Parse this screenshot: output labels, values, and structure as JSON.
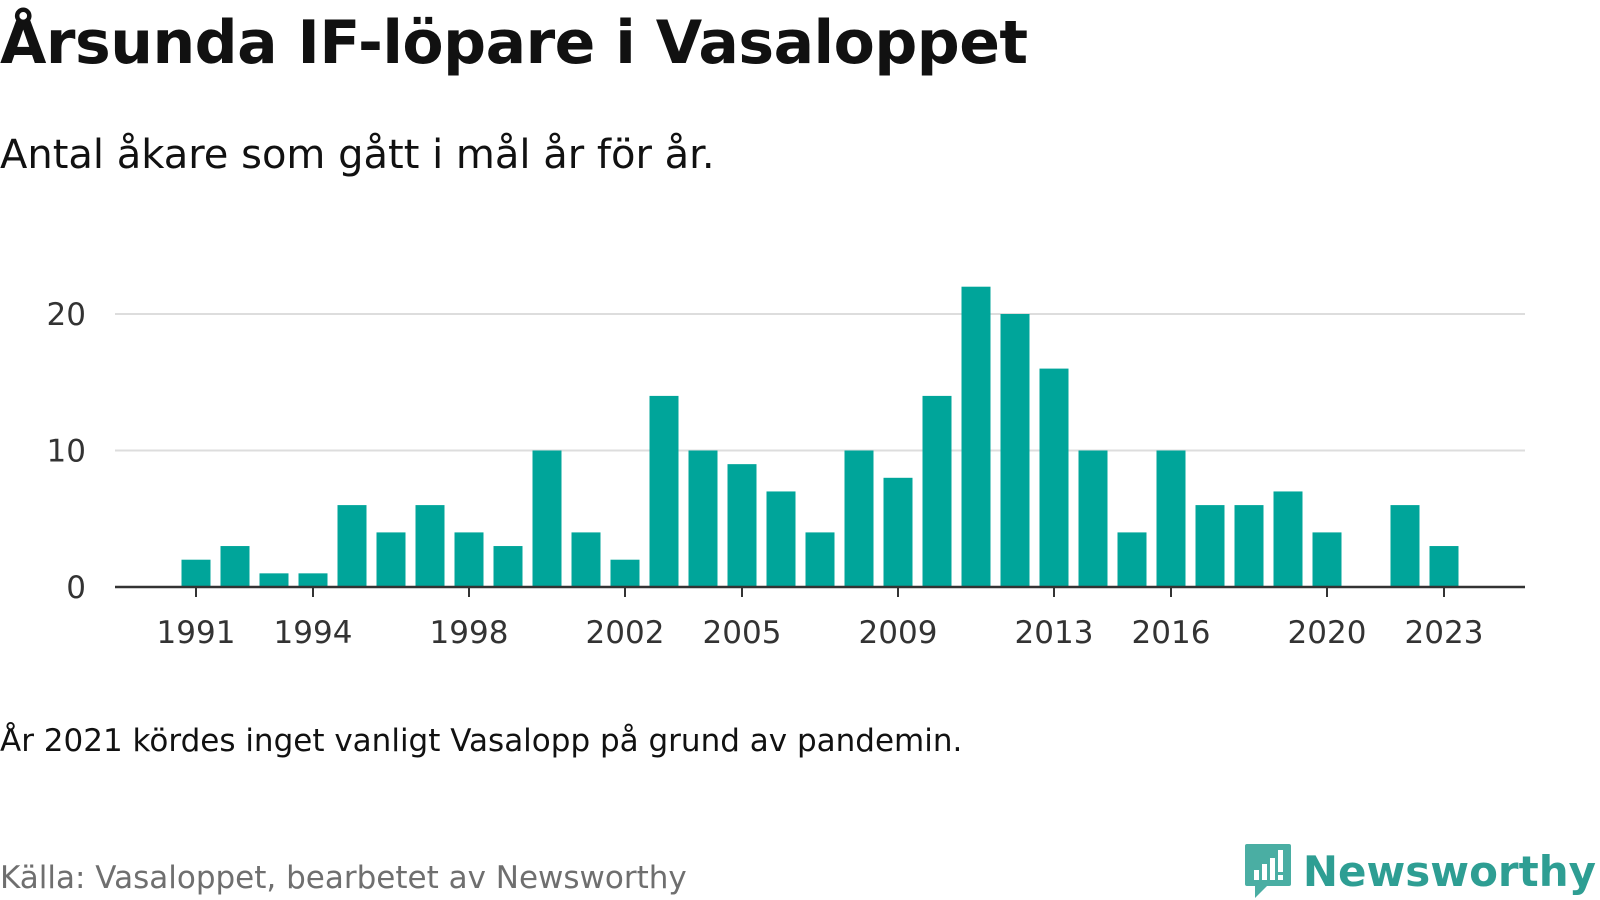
{
  "header": {
    "title": "Årsunda IF-löpare i Vasaloppet",
    "subtitle": "Antal åkare som gått i mål år för år."
  },
  "footer": {
    "note": "År 2021 kördes inget vanligt Vasalopp på grund av pandemin.",
    "source": "Källa: Vasaloppet, bearbetet av Newsworthy",
    "brand": "Newsworthy"
  },
  "colors": {
    "bar": "#00a59a",
    "grid": "#dddddd",
    "axis": "#333333",
    "brand": "#2e9e93"
  },
  "chart_data": {
    "type": "bar",
    "title": "Årsunda IF-löpare i Vasaloppet",
    "subtitle": "Antal åkare som gått i mål år för år.",
    "xlabel": "",
    "ylabel": "",
    "ylim": [
      0,
      22
    ],
    "yticks": [
      0,
      10,
      20
    ],
    "xticks": [
      1991,
      1994,
      1998,
      2002,
      2005,
      2009,
      2013,
      2016,
      2020,
      2023
    ],
    "grid": true,
    "legend": "none",
    "x": [
      1991,
      1992,
      1993,
      1994,
      1995,
      1996,
      1997,
      1998,
      1999,
      2000,
      2001,
      2002,
      2003,
      2004,
      2005,
      2006,
      2007,
      2008,
      2009,
      2010,
      2011,
      2012,
      2013,
      2014,
      2015,
      2016,
      2017,
      2018,
      2019,
      2020,
      2021,
      2022,
      2023
    ],
    "values": [
      2,
      3,
      1,
      1,
      6,
      4,
      6,
      4,
      3,
      10,
      4,
      2,
      14,
      10,
      9,
      7,
      4,
      10,
      8,
      14,
      22,
      20,
      16,
      10,
      4,
      10,
      6,
      6,
      7,
      4,
      0,
      6,
      3
    ]
  }
}
